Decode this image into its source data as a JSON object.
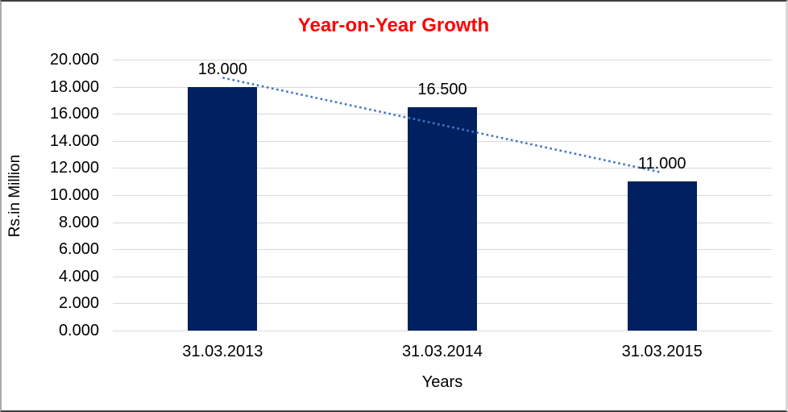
{
  "chart_data": {
    "type": "bar",
    "title": "Year-on-Year Growth",
    "title_color": "#FF0000",
    "xlabel": "Years",
    "ylabel": "Rs.in Million",
    "categories": [
      "31.03.2013",
      "31.03.2014",
      "31.03.2015"
    ],
    "values": [
      18.0,
      16.5,
      11.0
    ],
    "value_labels": [
      "18.000",
      "16.500",
      "11.000"
    ],
    "ylim": [
      0,
      20
    ],
    "ytick_step": 2,
    "ytick_labels": [
      "0.000",
      "2.000",
      "4.000",
      "6.000",
      "8.000",
      "10.000",
      "12.000",
      "14.000",
      "16.000",
      "18.000",
      "20.000"
    ],
    "grid": true,
    "legend": "none",
    "bar_color": "#002060",
    "gridline_color": "#D9D9D9",
    "text_color": "#000000",
    "trendline": {
      "type": "linear",
      "style": "dotted",
      "color": "#4477C6",
      "start_value": 18.667,
      "end_value": 11.667
    }
  }
}
